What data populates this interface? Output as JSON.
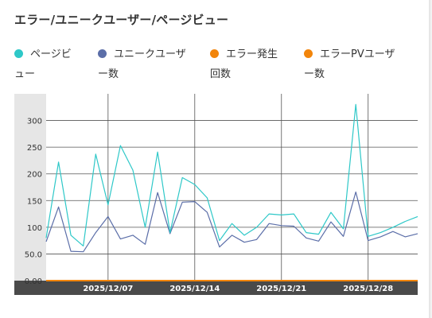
{
  "title": "エラー/ユニークユーザー/ページビュー",
  "legend": [
    {
      "line1": "ページビ",
      "line2": "ュー",
      "color": "#2ec8c8"
    },
    {
      "line1": "ユニークユーザ",
      "line2": "ー数",
      "color": "#5b6ea8"
    },
    {
      "line1": "エラー発生",
      "line2": "回数",
      "color": "#f2850b"
    },
    {
      "line1": "エラーPVユーザ",
      "line2": "ー数",
      "color": "#f2850b"
    }
  ],
  "chart_data": {
    "type": "line",
    "title": "エラー/ユニークユーザー/ページビュー",
    "xlabel": "",
    "ylabel": "",
    "x": [
      "2025/12/02",
      "2025/12/03",
      "2025/12/04",
      "2025/12/05",
      "2025/12/06",
      "2025/12/07",
      "2025/12/08",
      "2025/12/09",
      "2025/12/10",
      "2025/12/11",
      "2025/12/12",
      "2025/12/13",
      "2025/12/14",
      "2025/12/15",
      "2025/12/16",
      "2025/12/17",
      "2025/12/18",
      "2025/12/19",
      "2025/12/20",
      "2025/12/21",
      "2025/12/22",
      "2025/12/23",
      "2025/12/24",
      "2025/12/25",
      "2025/12/26",
      "2025/12/27",
      "2025/12/28",
      "2025/12/29",
      "2025/12/30",
      "2025/12/31",
      "2026/01/01"
    ],
    "x_tick_labels": [
      "2025/12/07",
      "2025/12/14",
      "2025/12/21",
      "2025/12/28"
    ],
    "y_tick_labels": [
      "0.00",
      "50.0",
      "100",
      "150",
      "200",
      "250",
      "300"
    ],
    "ylim": [
      0,
      350
    ],
    "grid": true,
    "legend_position": "top",
    "series": [
      {
        "name": "ページビュー",
        "color": "#2ec8c8",
        "values": [
          80,
          222,
          85,
          65,
          237,
          142,
          253,
          207,
          100,
          241,
          90,
          193,
          180,
          155,
          75,
          107,
          85,
          100,
          125,
          123,
          125,
          90,
          87,
          128,
          97,
          330,
          83,
          90,
          100,
          111,
          120
        ]
      },
      {
        "name": "ユニークユーザー数",
        "color": "#5b6ea8",
        "values": [
          73,
          138,
          55,
          54,
          90,
          120,
          78,
          85,
          68,
          165,
          88,
          147,
          148,
          128,
          63,
          85,
          72,
          77,
          107,
          103,
          102,
          80,
          74,
          110,
          83,
          166,
          75,
          82,
          92,
          82,
          88
        ]
      },
      {
        "name": "エラー発生回数",
        "color": "#f2850b",
        "values": [
          0,
          0,
          0,
          0,
          0,
          0,
          0,
          0,
          0,
          0,
          0,
          0,
          0,
          0,
          0,
          0,
          0,
          0,
          0,
          0,
          0,
          0,
          0,
          0,
          0,
          0,
          0,
          0,
          0,
          0,
          0
        ]
      },
      {
        "name": "エラーPVユーザー数",
        "color": "#f2850b",
        "values": [
          0,
          0,
          0,
          0,
          0,
          0,
          0,
          0,
          0,
          0,
          0,
          0,
          0,
          0,
          0,
          0,
          0,
          0,
          0,
          0,
          0,
          0,
          0,
          0,
          0,
          0,
          0,
          0,
          0,
          0,
          0
        ]
      }
    ]
  }
}
